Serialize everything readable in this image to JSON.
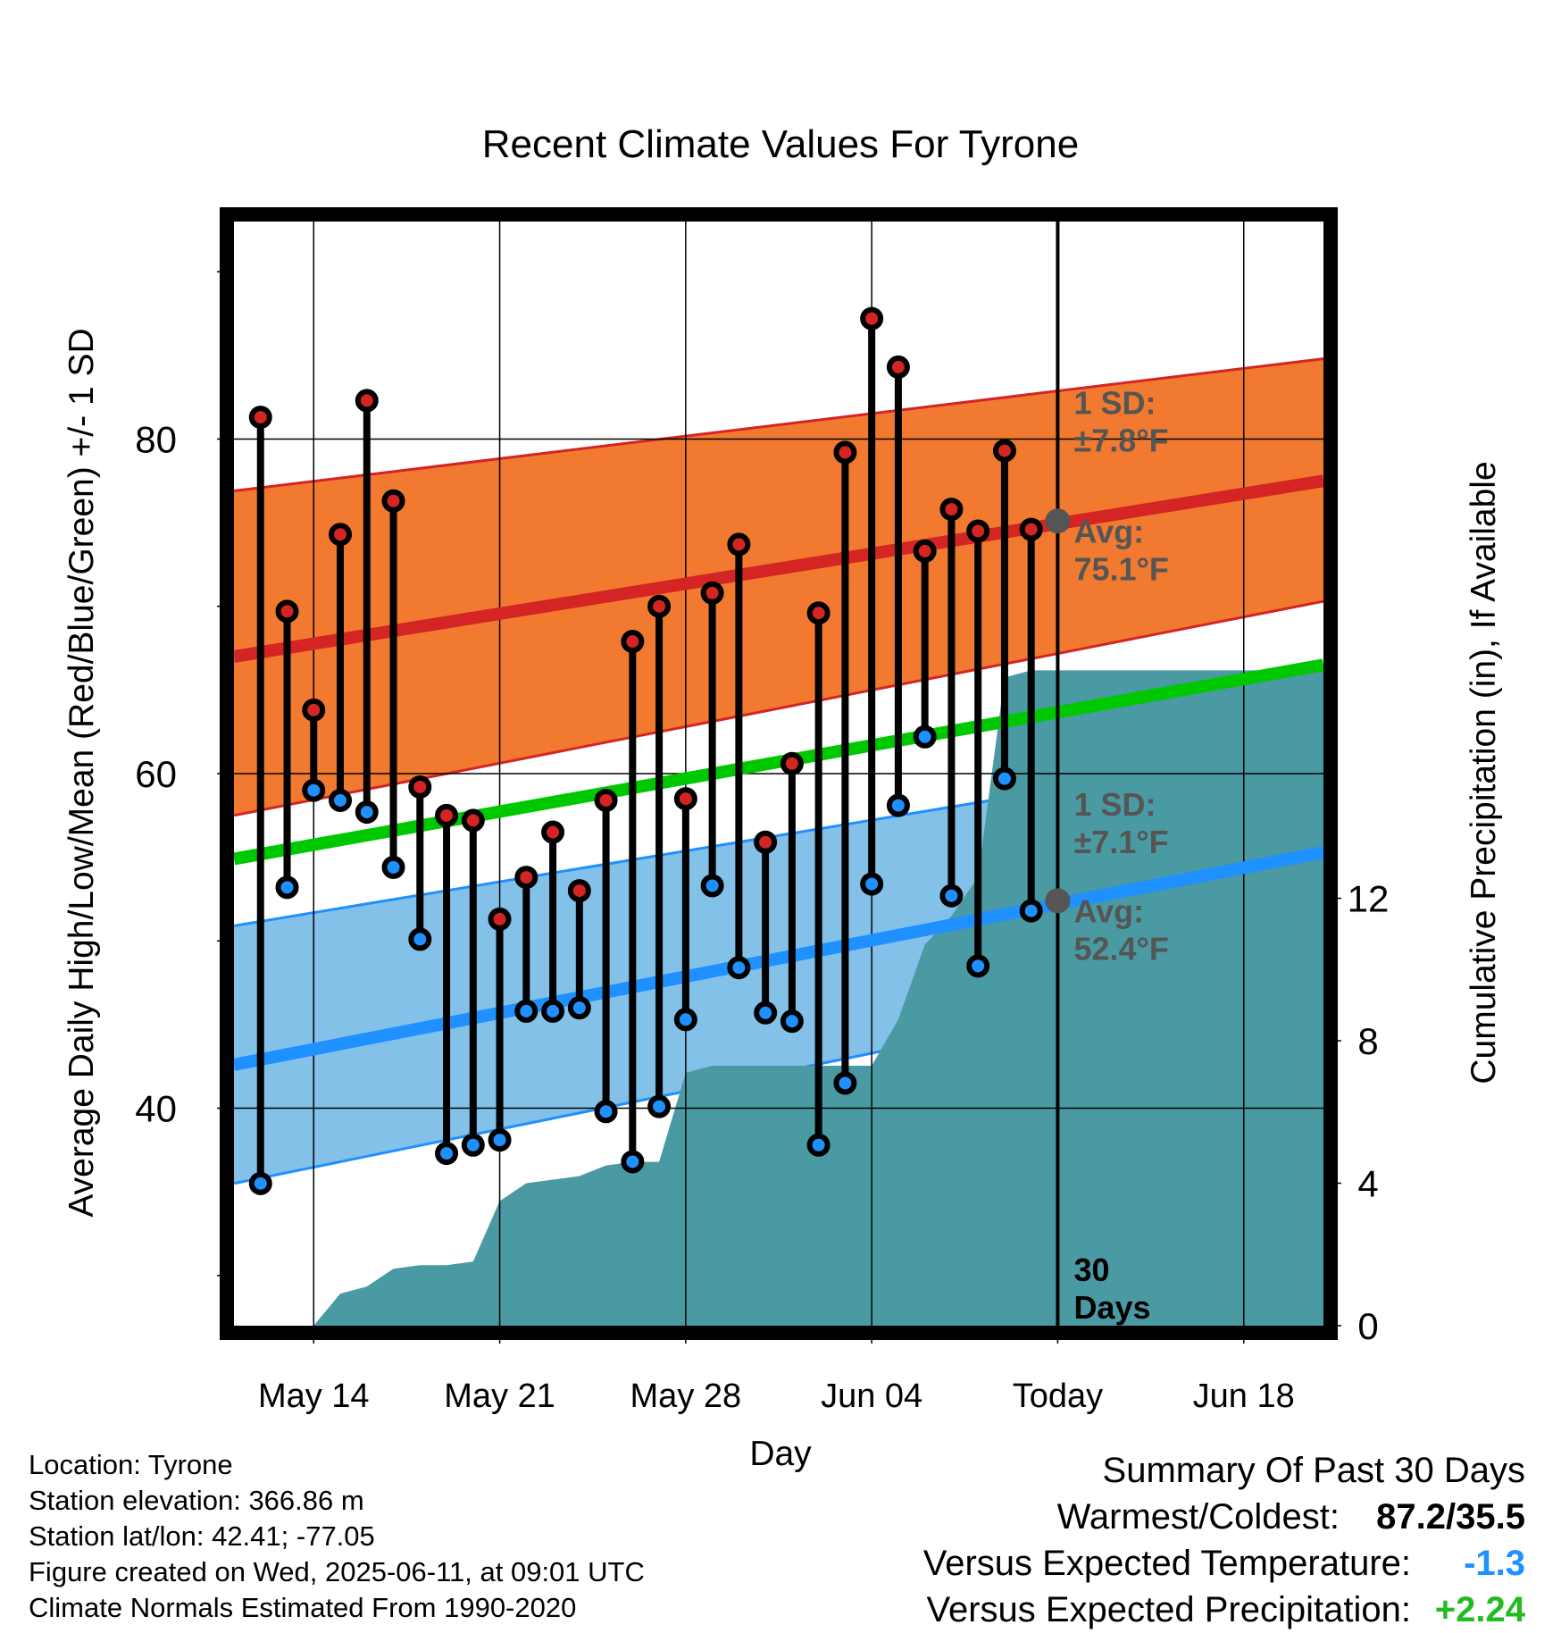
{
  "chart_data": {
    "type": "line",
    "title": "Recent Climate Values For Tyrone",
    "xlabel": "Day",
    "ylabel": "Average Daily High/Low/Mean (Red/Blue/Green) +/- 1 SD",
    "y2label": "Cumulative Precipitation (in), If Available",
    "x_tick_labels": [
      "May 14",
      "May 21",
      "May 28",
      "Jun 04",
      "Today",
      "Jun 18"
    ],
    "x_tick_days": [
      3,
      10,
      17,
      24,
      31,
      38
    ],
    "x_range_days": [
      0,
      41
    ],
    "ylim": [
      27,
      93
    ],
    "y_ticks": [
      40,
      60,
      80
    ],
    "y2lim": [
      0,
      31
    ],
    "y2_ticks": [
      0,
      4,
      8,
      12
    ],
    "grid": true,
    "today_day": 31,
    "today_label": [
      "30",
      "Days"
    ],
    "normals": {
      "high_avg": [
        67.0,
        77.5
      ],
      "high_upper": [
        76.9,
        84.8
      ],
      "high_lower": [
        57.5,
        70.3
      ],
      "mean": [
        54.9,
        66.5
      ],
      "low_avg": [
        42.6,
        55.3
      ],
      "low_upper": [
        50.9,
        61.7
      ],
      "low_lower": [
        35.5,
        48.8
      ]
    },
    "observations": {
      "days": [
        1,
        2,
        3,
        4,
        5,
        6,
        7,
        8,
        9,
        10,
        11,
        12,
        13,
        14,
        15,
        16,
        17,
        18,
        19,
        20,
        21,
        22,
        23,
        24,
        25,
        26,
        27,
        28,
        29,
        30
      ],
      "highs": [
        81.3,
        69.7,
        63.8,
        74.3,
        82.3,
        76.3,
        59.2,
        57.5,
        57.2,
        51.3,
        53.8,
        56.5,
        53.0,
        58.4,
        67.9,
        70.0,
        58.5,
        70.8,
        73.7,
        55.9,
        60.6,
        69.6,
        79.2,
        87.2,
        84.3,
        73.3,
        75.8,
        74.5,
        79.3,
        74.6
      ],
      "lows": [
        35.5,
        53.2,
        59.0,
        58.4,
        57.7,
        54.4,
        50.1,
        37.3,
        37.8,
        38.1,
        45.8,
        45.8,
        46.0,
        39.8,
        36.8,
        40.1,
        45.3,
        53.3,
        48.4,
        45.7,
        45.2,
        37.8,
        41.5,
        53.4,
        58.1,
        62.2,
        52.7,
        48.5,
        59.7,
        51.8
      ]
    },
    "precip": {
      "days": [
        0,
        3,
        4,
        5,
        6,
        7,
        8,
        9,
        10,
        11,
        12,
        13,
        14,
        15,
        16,
        17,
        18,
        19,
        20,
        21,
        22,
        23,
        24,
        25,
        26,
        27,
        28,
        29,
        30,
        31,
        41
      ],
      "values": [
        0,
        0,
        0.9,
        1.1,
        1.6,
        1.7,
        1.7,
        1.8,
        3.5,
        4.0,
        4.1,
        4.2,
        4.5,
        4.6,
        4.6,
        7.1,
        7.3,
        7.3,
        7.3,
        7.3,
        7.3,
        7.3,
        7.3,
        8.6,
        10.7,
        11.5,
        12.6,
        18.2,
        18.4,
        18.4,
        18.4
      ]
    },
    "annotations": {
      "high_sd": "1 SD:\n±7.8°F",
      "high_avg_label": "Avg:\n75.1°F",
      "high_today_value": 75.1,
      "low_sd": "1 SD:\n±7.1°F",
      "low_avg_label": "Avg:\n52.4°F",
      "low_today_value": 52.4
    },
    "colors": {
      "high_band": "#f27a30",
      "high_line": "#d42424",
      "mean_line": "#00c800",
      "low_band": "#84c1e8",
      "low_line": "#1e90ff",
      "precip": "#4a9aa3",
      "high_marker": "#d42424",
      "low_marker": "#1e90ff",
      "annotation_text": "#555555",
      "dep_temp": "#1e90ff",
      "dep_precip": "#22bb22"
    }
  },
  "info": {
    "location": "Location: Tyrone",
    "elevation": "Station elevation: 366.86 m",
    "latlon": "Station lat/lon: 42.41; -77.05",
    "created": "Figure created on Wed, 2025-06-11, at 09:01 UTC",
    "normals": "Climate Normals Estimated From 1990-2020"
  },
  "summary": {
    "title": "Summary Of Past 30 Days",
    "warm_cold_label": "Warmest/Coldest:",
    "warm_cold_value": "87.2/35.5",
    "temp_label": "Versus Expected Temperature:",
    "temp_value": "-1.3",
    "precip_label": "Versus Expected Precipitation:",
    "precip_value": "+2.24"
  }
}
